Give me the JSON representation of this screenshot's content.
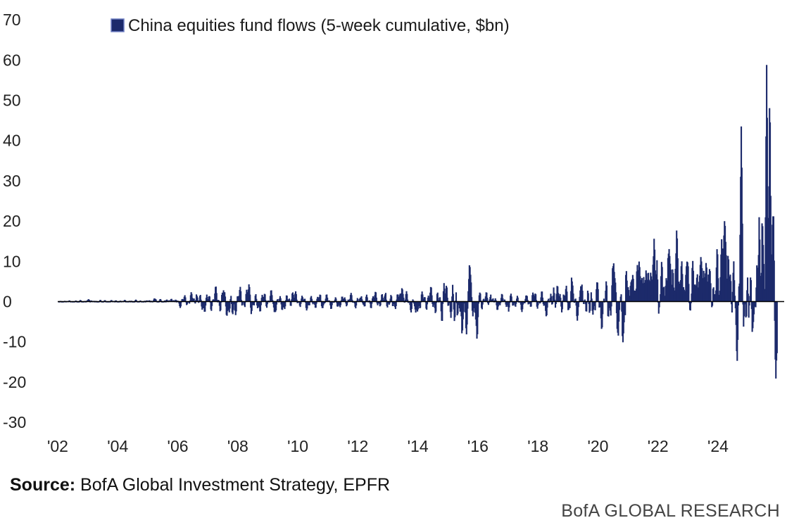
{
  "chart_data": {
    "type": "area",
    "title": "",
    "xlabel": "",
    "ylabel": "",
    "legend": {
      "label": "China equities fund flows (5-week cumulative, $bn)",
      "position": "top-left"
    },
    "color": "#1c2a6b",
    "ylim": [
      -30,
      70
    ],
    "yticks": [
      70,
      60,
      50,
      40,
      30,
      20,
      10,
      0,
      -10,
      -20,
      -30
    ],
    "xlim": [
      2002.0,
      2025.0
    ],
    "xticks": [
      {
        "value": 2002,
        "label": "'02"
      },
      {
        "value": 2004,
        "label": "'04"
      },
      {
        "value": 2006,
        "label": "'06"
      },
      {
        "value": 2008,
        "label": "'08"
      },
      {
        "value": 2010,
        "label": "'10"
      },
      {
        "value": 2012,
        "label": "'12"
      },
      {
        "value": 2014,
        "label": "'14"
      },
      {
        "value": 2016,
        "label": "'16"
      },
      {
        "value": 2018,
        "label": "'18"
      },
      {
        "value": 2020,
        "label": "'20"
      },
      {
        "value": 2022,
        "label": "'22"
      },
      {
        "value": 2024,
        "label": "'24"
      }
    ],
    "grid": false,
    "anchors": [
      {
        "x": 2002.0,
        "amp": 0.6
      },
      {
        "x": 2003.5,
        "amp": 0.8
      },
      {
        "x": 2005.0,
        "amp": 0.8
      },
      {
        "x": 2006.0,
        "amp": 1.5
      },
      {
        "x": 2006.9,
        "amp": 3.0
      },
      {
        "x": 2007.7,
        "amp": 4.0
      },
      {
        "x": 2008.5,
        "amp": 3.0
      },
      {
        "x": 2009.4,
        "amp": 2.5
      },
      {
        "x": 2010.5,
        "amp": 2.0
      },
      {
        "x": 2011.5,
        "amp": 1.8
      },
      {
        "x": 2012.7,
        "amp": 2.5
      },
      {
        "x": 2013.5,
        "amp": 2.5
      },
      {
        "x": 2014.2,
        "amp": 3.0
      },
      {
        "x": 2014.9,
        "amp": 5.0
      },
      {
        "x": 2015.5,
        "amp": 8.0
      },
      {
        "x": 2016.2,
        "amp": 2.5
      },
      {
        "x": 2017.0,
        "amp": 2.0
      },
      {
        "x": 2017.8,
        "amp": 2.5
      },
      {
        "x": 2018.5,
        "amp": 4.0
      },
      {
        "x": 2019.3,
        "amp": 4.5
      },
      {
        "x": 2019.9,
        "amp": 5.0
      },
      {
        "x": 2020.4,
        "amp": 8.0
      },
      {
        "x": 2020.9,
        "amp": 7.0
      },
      {
        "x": 2021.5,
        "amp": 9.0
      },
      {
        "x": 2022.2,
        "amp": 11.0
      },
      {
        "x": 2022.8,
        "amp": 9.0
      },
      {
        "x": 2023.3,
        "amp": 9.0
      },
      {
        "x": 2023.8,
        "amp": 12.0
      },
      {
        "x": 2024.3,
        "amp": 14.0
      },
      {
        "x": 2025.0,
        "amp": 14.0
      }
    ],
    "spikes": [
      {
        "x": 2003.0,
        "value": 0.6
      },
      {
        "x": 2005.2,
        "value": 0.9
      },
      {
        "x": 2006.6,
        "value": 2.0
      },
      {
        "x": 2007.5,
        "value": 2.8
      },
      {
        "x": 2007.8,
        "value": -3.5
      },
      {
        "x": 2008.35,
        "value": 4.5
      },
      {
        "x": 2009.2,
        "value": -3.0
      },
      {
        "x": 2009.8,
        "value": 2.5
      },
      {
        "x": 2010.8,
        "value": -1.8
      },
      {
        "x": 2012.1,
        "value": 1.5
      },
      {
        "x": 2012.9,
        "value": 2.4
      },
      {
        "x": 2013.45,
        "value": 4.0
      },
      {
        "x": 2013.9,
        "value": -3.0
      },
      {
        "x": 2014.85,
        "value": 5.0
      },
      {
        "x": 2015.2,
        "value": -6.0
      },
      {
        "x": 2015.45,
        "value": -10.0
      },
      {
        "x": 2015.7,
        "value": 10.5
      },
      {
        "x": 2015.95,
        "value": -11.0
      },
      {
        "x": 2016.4,
        "value": 2.0
      },
      {
        "x": 2017.0,
        "value": -2.5
      },
      {
        "x": 2017.6,
        "value": 1.5
      },
      {
        "x": 2018.5,
        "value": 3.5
      },
      {
        "x": 2019.1,
        "value": 6.5
      },
      {
        "x": 2019.4,
        "value": 4.0
      },
      {
        "x": 2019.7,
        "value": -3.5
      },
      {
        "x": 2019.95,
        "value": 5.0
      },
      {
        "x": 2020.5,
        "value": 9.5
      },
      {
        "x": 2020.65,
        "value": -9.0
      },
      {
        "x": 2020.8,
        "value": -11.5
      },
      {
        "x": 2021.1,
        "value": 5.5
      },
      {
        "x": 2021.35,
        "value": 10.5
      },
      {
        "x": 2021.85,
        "value": 16.5
      },
      {
        "x": 2022.0,
        "value": -3.0
      },
      {
        "x": 2022.35,
        "value": 13.5
      },
      {
        "x": 2022.6,
        "value": 18.5
      },
      {
        "x": 2022.95,
        "value": 11.0
      },
      {
        "x": 2023.05,
        "value": -3.0
      },
      {
        "x": 2023.4,
        "value": 11.5
      },
      {
        "x": 2023.7,
        "value": 9.0
      },
      {
        "x": 2023.78,
        "value": -3.0
      },
      {
        "x": 2024.1,
        "value": 16.0
      },
      {
        "x": 2024.2,
        "value": 22.0
      },
      {
        "x": 2024.45,
        "value": -4.5
      },
      {
        "x": 2024.5,
        "value": 10.0
      },
      {
        "x": 2024.75,
        "value": 43.5
      },
      {
        "x": 2025.0,
        "value": -4.0
      },
      {
        "x": 2025.15,
        "value": -5.0
      },
      {
        "x": 2025.35,
        "value": 23.0
      },
      {
        "x": 2025.45,
        "value": 24.0
      },
      {
        "x": 2025.6,
        "value": 62.5
      },
      {
        "x": 2025.7,
        "value": 55.0
      },
      {
        "x": 2025.82,
        "value": 23.0
      },
      {
        "x": 2025.9,
        "value": -20.5
      }
    ]
  },
  "footer": {
    "source_label": "Source:",
    "source_text": " BofA Global Investment Strategy, EPFR",
    "brand": "BofA GLOBAL RESEARCH"
  }
}
